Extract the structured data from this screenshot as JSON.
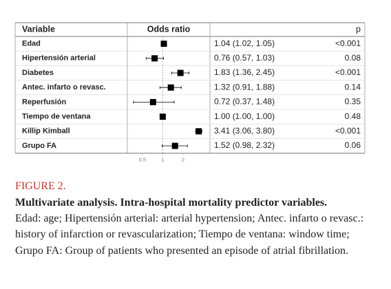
{
  "chart_data": {
    "type": "forest",
    "columns": [
      "Variable",
      "Odds ratio",
      "p"
    ],
    "categories": [
      "Edad",
      "Hipertensión arterial",
      "Diabetes",
      "Antec. infarto o revasc.",
      "Reperfusión",
      "Tiempo de ventana",
      "Killip Kimball",
      "Grupo FA"
    ],
    "values": [
      1.04,
      0.76,
      1.83,
      1.32,
      0.72,
      1.0,
      3.41,
      1.52
    ],
    "lower": [
      1.02,
      0.57,
      1.36,
      0.91,
      0.37,
      1.0,
      3.06,
      0.98
    ],
    "upper": [
      1.05,
      1.03,
      2.45,
      1.88,
      1.48,
      1.0,
      3.8,
      2.32
    ],
    "value_labels": [
      "1.04 (1.02, 1.05)",
      "0.76 (0.57, 1.03)",
      "1.83 (1.36, 2.45)",
      "1.32 (0.91, 1.88)",
      "0.72 (0.37, 1.48)",
      "1.00 (1.00, 1.00)",
      "3.41 (3.06, 3.80)",
      "1.52 (0.98, 2.32)"
    ],
    "p_labels": [
      "<0.001",
      "0.08",
      "<0.001",
      "0.14",
      "0.35",
      "0.48",
      "<0.001",
      "0.06"
    ],
    "xlim": [
      0.3,
      5
    ],
    "xticks": [
      0.5,
      1,
      2
    ],
    "log_x": true,
    "reference_line": 1,
    "color": "#000000"
  },
  "caption": {
    "label": "FIGURE 2.",
    "title": "Multivariate analysis. Intra-hospital mortality predictor variables.",
    "text": "Edad: age; Hipertensión arterial: arterial hypertension; Antec. infarto o revasc.: history of infarction or revascularization; Tiempo de ventana: window time; Grupo FA: Group of patients who presented an episode of atrial fibrillation."
  }
}
